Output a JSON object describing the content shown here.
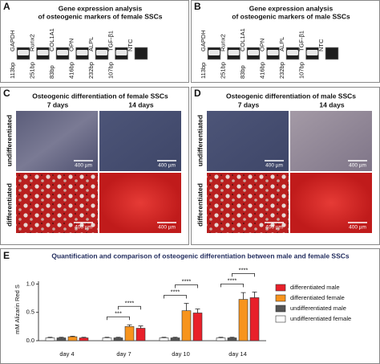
{
  "panels": {
    "A": {
      "label": "A",
      "title": "Gene expression analysis",
      "subtitle": "of osteogenic markers of female SSCs",
      "genes": [
        "GAPDH",
        "Runx2",
        "COL1A1",
        "OPN",
        "ALPL",
        "TGF-β1",
        "NTC"
      ],
      "sizes": [
        "113bp",
        "251bp",
        "83bp",
        "416bp",
        "232bp",
        "107bp"
      ]
    },
    "B": {
      "label": "B",
      "title": "Gene expression analysis",
      "subtitle": "of osteogenic markers of male SSCs",
      "genes": [
        "GAPDH",
        "Runx2",
        "COL1A1",
        "OPN",
        "ALPL",
        "TGF-β1",
        "NTC"
      ],
      "sizes": [
        "113bp",
        "251bp",
        "83bp",
        "416bp",
        "232bp",
        "107bp"
      ]
    },
    "C": {
      "label": "C",
      "title": "Osteogenic differentiation of female SSCs",
      "columns": [
        "7 days",
        "14 days"
      ],
      "rows": [
        "undifferentiated",
        "differentiated"
      ],
      "scale": "400 µm"
    },
    "D": {
      "label": "D",
      "title": "Osteogenic differentiation of male SSCs",
      "columns": [
        "7 days",
        "14 days"
      ],
      "rows": [
        "undifferentiated",
        "differentiated"
      ],
      "scale": "400 µm"
    },
    "E": {
      "label": "E"
    }
  },
  "chart_data": {
    "type": "bar",
    "title": "Quantification and comparison of osteogenic differentiation between male and female SSCs",
    "ylabel": "mM  Alizarin Red S",
    "categories": [
      "day 4",
      "day 7",
      "day 10",
      "day 14"
    ],
    "series": [
      {
        "name": "undifferentiated female",
        "color": "#ffffff",
        "values": [
          0.05,
          0.05,
          0.05,
          0.05
        ],
        "errors": [
          0.01,
          0.01,
          0.01,
          0.01
        ]
      },
      {
        "name": "undifferentiated male",
        "color": "#555555",
        "values": [
          0.05,
          0.05,
          0.05,
          0.05
        ],
        "errors": [
          0.01,
          0.01,
          0.01,
          0.01
        ]
      },
      {
        "name": "differentiated female",
        "color": "#f7941d",
        "values": [
          0.07,
          0.25,
          0.53,
          0.73
        ],
        "errors": [
          0.01,
          0.03,
          0.13,
          0.12
        ]
      },
      {
        "name": "differentiated male",
        "color": "#e8202a",
        "values": [
          0.05,
          0.22,
          0.49,
          0.76
        ],
        "errors": [
          0.01,
          0.04,
          0.07,
          0.1
        ]
      }
    ],
    "significance": [
      [],
      [
        "***",
        "****"
      ],
      [
        "****",
        "****"
      ],
      [
        "****",
        "****"
      ]
    ],
    "ylim": [
      0,
      1.05
    ],
    "yticks": [
      {
        "value": 0,
        "label": "0.0"
      },
      0.5,
      {
        "value": 1,
        "label": "1.0"
      }
    ]
  }
}
